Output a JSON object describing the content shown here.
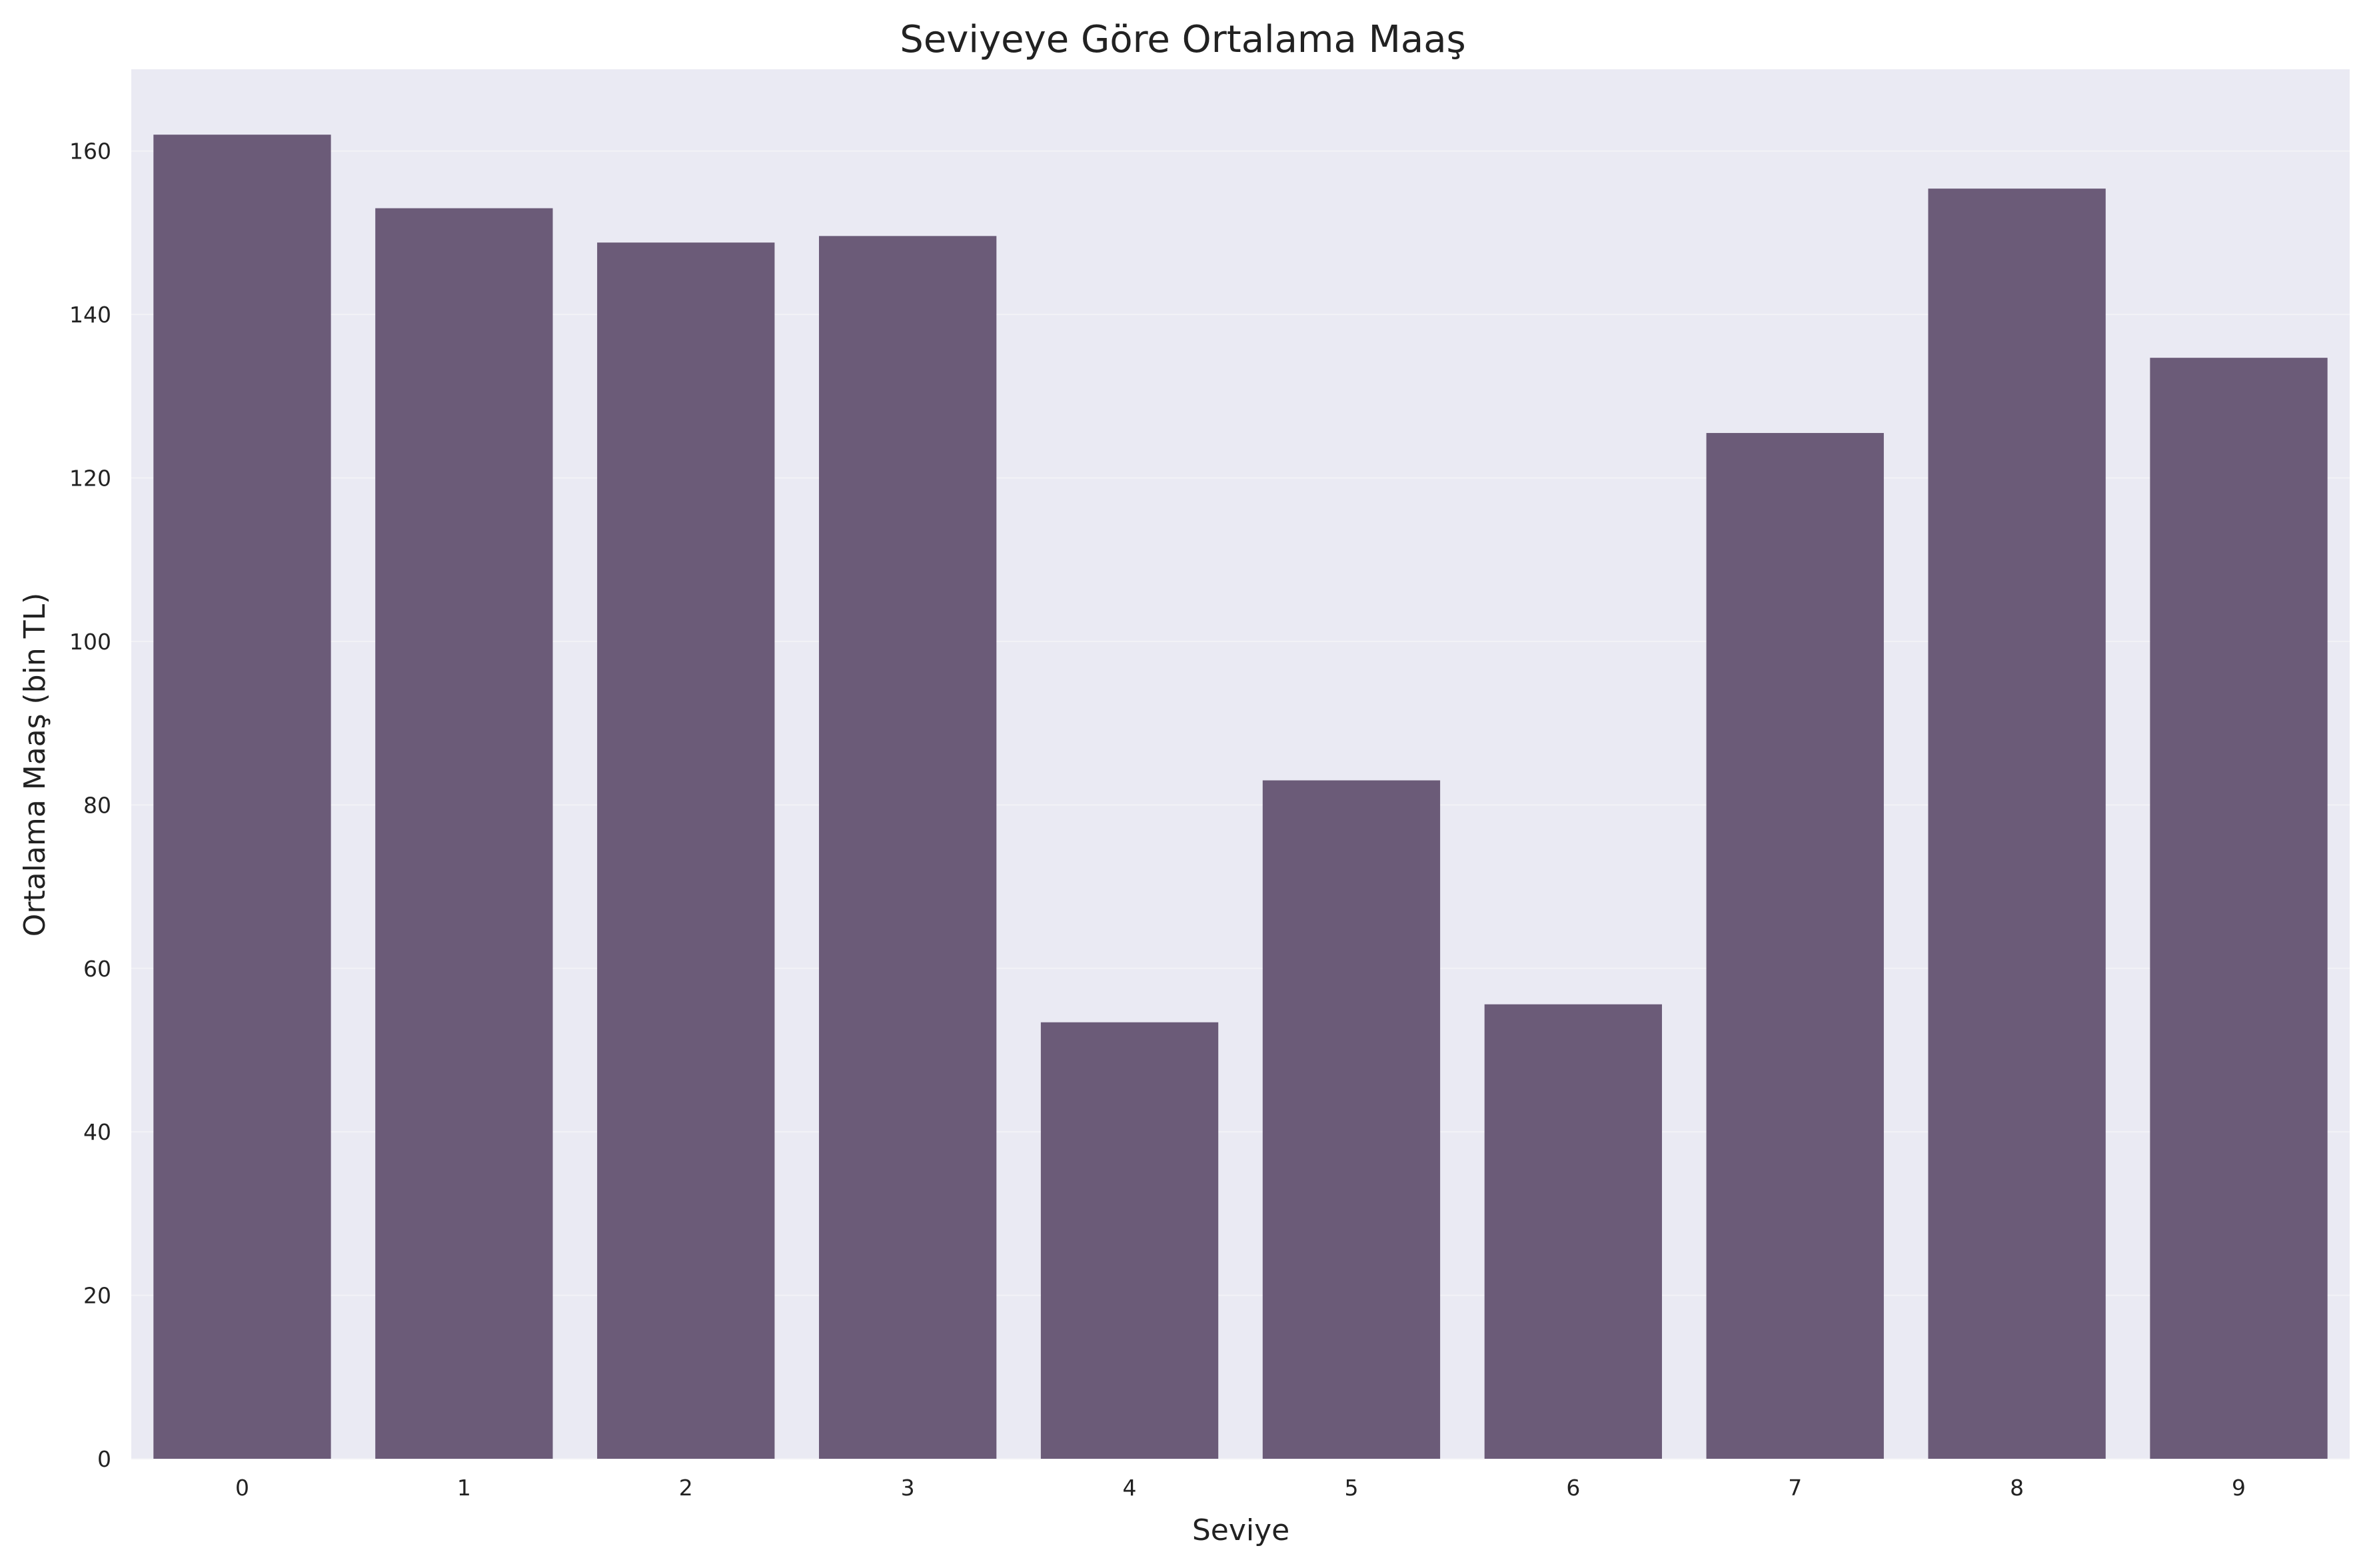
{
  "chart_data": {
    "type": "bar",
    "title": "Seviyeye Göre Ortalama Maaş",
    "xlabel": "Seviye",
    "ylabel": "Ortalama Maaş (bin TL)",
    "categories": [
      "0",
      "1",
      "2",
      "3",
      "4",
      "5",
      "6",
      "7",
      "8",
      "9"
    ],
    "values": [
      162,
      153,
      148.8,
      149.6,
      53.4,
      83,
      55.6,
      125.5,
      155.4,
      134.7
    ],
    "ylim": [
      0,
      170
    ],
    "yticks": [
      0,
      20,
      40,
      60,
      80,
      100,
      120,
      140,
      160
    ],
    "grid": true,
    "colors": {
      "bar": "#6b5b78",
      "plot_background": "#eaeaf3",
      "figure_background": "#ffffff"
    }
  }
}
